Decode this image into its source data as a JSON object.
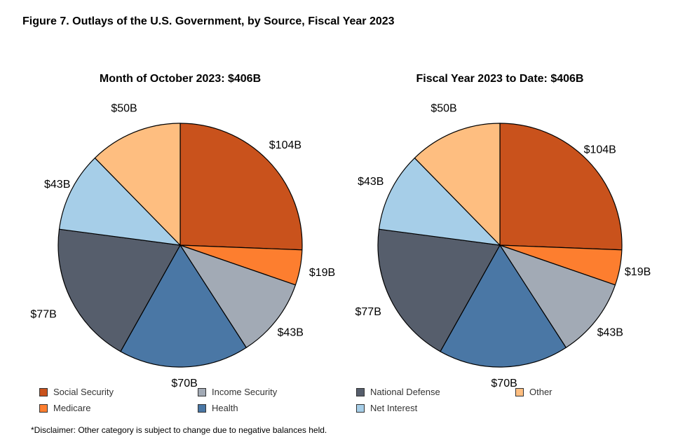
{
  "figure_title": "Figure 7. Outlays of the U.S. Government, by Source, Fiscal Year 2023",
  "disclaimer": "*Disclaimer: Other category is subject to change due to negative balances held.",
  "chart_data": [
    {
      "type": "pie",
      "title": "Month of October 2023: $406B",
      "slices": [
        {
          "name": "Social Security",
          "value": 104,
          "label": "$104B",
          "color": "#C9521C"
        },
        {
          "name": "Medicare",
          "value": 19,
          "label": "$19B",
          "color": "#FD7E2F"
        },
        {
          "name": "Income Security",
          "value": 43,
          "label": "$43B",
          "color": "#A2AAB5"
        },
        {
          "name": "Health",
          "value": 70,
          "label": "$70B",
          "color": "#4A77A5"
        },
        {
          "name": "National Defense",
          "value": 77,
          "label": "$77B",
          "color": "#565E6C"
        },
        {
          "name": "Net Interest",
          "value": 43,
          "label": "$43B",
          "color": "#A6CEE8"
        },
        {
          "name": "Other",
          "value": 50,
          "label": "$50B",
          "color": "#FEBE80"
        }
      ]
    },
    {
      "type": "pie",
      "title": "Fiscal Year 2023 to Date: $406B",
      "slices": [
        {
          "name": "Social Security",
          "value": 104,
          "label": "$104B",
          "color": "#C9521C"
        },
        {
          "name": "Medicare",
          "value": 19,
          "label": "$19B",
          "color": "#FD7E2F"
        },
        {
          "name": "Income Security",
          "value": 43,
          "label": "$43B",
          "color": "#A2AAB5"
        },
        {
          "name": "Health",
          "value": 70,
          "label": "$70B",
          "color": "#4A77A5"
        },
        {
          "name": "National Defense",
          "value": 77,
          "label": "$77B",
          "color": "#565E6C"
        },
        {
          "name": "Net Interest",
          "value": 43,
          "label": "$43B",
          "color": "#A6CEE8"
        },
        {
          "name": "Other",
          "value": 50,
          "label": "$50B",
          "color": "#FEBE80"
        }
      ]
    }
  ],
  "legend": [
    {
      "label": "Social Security",
      "color": "#C9521C"
    },
    {
      "label": "Medicare",
      "color": "#FD7E2F"
    },
    {
      "label": "Income Security",
      "color": "#A2AAB5"
    },
    {
      "label": "Health",
      "color": "#4A77A5"
    },
    {
      "label": "National Defense",
      "color": "#565E6C"
    },
    {
      "label": "Net Interest",
      "color": "#A6CEE8"
    },
    {
      "label": "Other",
      "color": "#FEBE80"
    }
  ]
}
